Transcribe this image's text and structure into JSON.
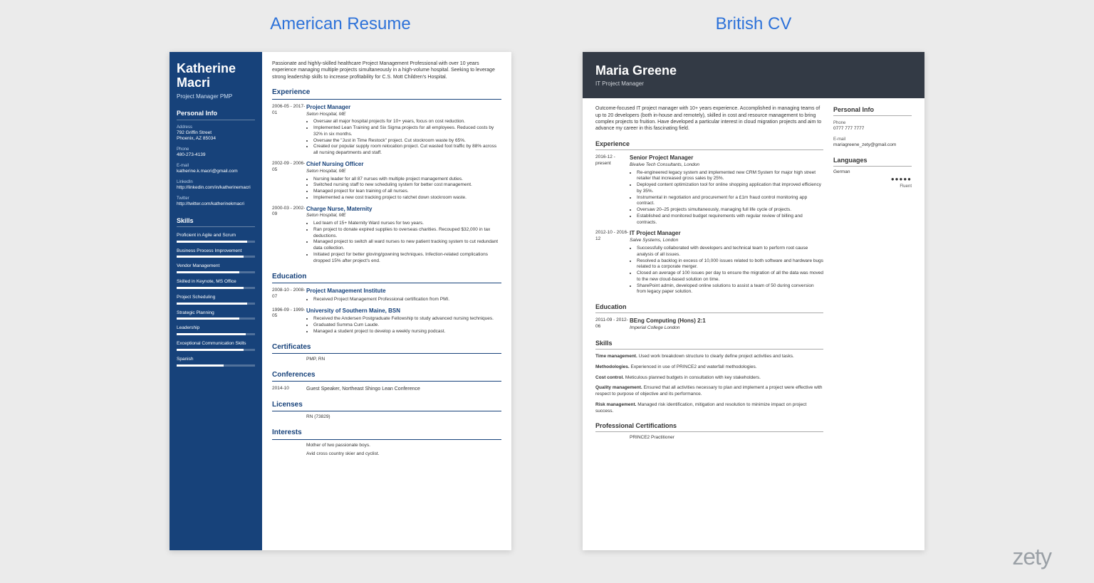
{
  "page": {
    "left_heading": "American Resume",
    "right_heading": "British CV",
    "brand": "zety"
  },
  "us": {
    "name_first": "Katherine",
    "name_last": "Macri",
    "title": "Project Manager PMP",
    "personal_info_h": "Personal Info",
    "address_label": "Address",
    "address1": "792 Griffin Street",
    "address2": "Phoenix, AZ 85034",
    "phone_label": "Phone",
    "phone": "480-273-4139",
    "email_label": "E-mail",
    "email": "katherine.k.macri@gmail.com",
    "linkedin_label": "LinkedIn",
    "linkedin": "http://linkedin.com/in/katherinemacri",
    "twitter_label": "Twitter",
    "twitter": "http://twitter.com/katherinekmacri",
    "skills_h": "Skills",
    "skills": [
      {
        "label": "Proficient in Agile and Scrum",
        "pct": 90
      },
      {
        "label": "Business Process Improvement",
        "pct": 85
      },
      {
        "label": "Vendor Management",
        "pct": 80
      },
      {
        "label": "Skilled in Keynote, MS Office",
        "pct": 85
      },
      {
        "label": "Project Scheduling",
        "pct": 90
      },
      {
        "label": "Strategic Planning",
        "pct": 80
      },
      {
        "label": "Leadership",
        "pct": 88
      },
      {
        "label": "Exceptional Communication Skills",
        "pct": 85
      }
    ],
    "lang_skill": {
      "label": "Spanish",
      "pct": 60
    },
    "summary": "Passionate and highly-skilled healthcare Project Management Professional with over 10 years experience managing multiple projects simultaneously in a high-volume hospital. Seeking to leverage strong leadership skills to increase profitability for C.S. Mott Children's Hospital.",
    "experience_h": "Experience",
    "exp": [
      {
        "dates": "2006-05 - 2017-01",
        "role": "Project Manager",
        "org": "Seton Hospital, ME",
        "bullets": [
          "Oversaw all major hospital projects for 10+ years, focus on cost reduction.",
          "Implemented Lean Training and Six Sigma projects for all employees. Reduced costs by 32% in six months.",
          "Oversaw the \"Just in Time Restock\" project. Cut stockroom waste by 65%.",
          "Created our popular supply room relocation project. Cut wasted foot traffic by 88% across all nursing departments and staff."
        ]
      },
      {
        "dates": "2002-09 - 2006-05",
        "role": "Chief Nursing Officer",
        "org": "Seton Hospital, ME",
        "bullets": [
          "Nursing leader for all 87 nurses with multiple project management duties.",
          "Switched nursing staff to new scheduling system for better cost management.",
          "Managed project for lean training of all nurses.",
          "Implemented a new cost tracking project to ratchet down stockroom waste."
        ]
      },
      {
        "dates": "2000-03 - 2002-09",
        "role": "Charge Nurse, Maternity",
        "org": "Seton Hospital, ME",
        "bullets": [
          "Led team of 15+ Maternity Ward nurses for two years.",
          "Ran project to donate expired supplies to overseas charities. Recouped $32,000 in tax deductions.",
          "Managed project to switch all ward nurses to new patient tracking system to cut redundant data collection.",
          "Initiated project for better gloving/gowning techniques. Infection-related complications dropped 15% after project's end."
        ]
      }
    ],
    "education_h": "Education",
    "edu": [
      {
        "dates": "2008-10 - 2008-07",
        "role": "Project Management Institute",
        "org": "",
        "bullets": [
          "Received Project Management Professional certification from PMI."
        ]
      },
      {
        "dates": "1996-09 - 1999-05",
        "role": "University of Southern Maine, BSN",
        "org": "",
        "bullets": [
          "Received the Andersen Postgraduate Fellowship to study advanced nursing techniques.",
          "Graduated Summa Cum Laude.",
          "Managed a student project to develop a weekly nursing podcast."
        ]
      }
    ],
    "certificates_h": "Certificates",
    "certificates": "PMP, RN",
    "conferences_h": "Conferences",
    "conf_date": "2014-10",
    "conf": "Guest Speaker, Northeast Shingo Lean Conference",
    "licenses_h": "Licenses",
    "licenses": "RN (73829)",
    "interests_h": "Interests",
    "interest1": "Mother of two passionate boys.",
    "interest2": "Avid cross country skier and cyclist."
  },
  "uk": {
    "name": "Maria Greene",
    "title": "IT Project Manager",
    "summary": "Outcome-focused IT project manager with 10+ years experience. Accomplished in managing teams of up to 20 developers (both in-house and remotely), skilled in cost and resource management to bring complex projects to fruition. Have developed a particular interest in cloud migration projects and aim to advance my career in this fascinating field.",
    "experience_h": "Experience",
    "exp": [
      {
        "dates": "2016-12 - present",
        "role": "Senior Project Manager",
        "org": "Bivalve Tech Consultants, London",
        "bullets": [
          "Re-engineered legacy system and implemented new CRM System for major high street retailer that increased gross sales by 25%.",
          "Deployed content optimization tool for online shopping application that improved efficiency by 35%.",
          "Instrumental in negotiation and procurement for a £1m fraud control monitoring app contract.",
          "Oversaw 20–25 projects simultaneously, managing full life cycle of projects.",
          "Established and monitored budget requirements with regular review of billing and contracts."
        ]
      },
      {
        "dates": "2012-10 - 2016-12",
        "role": "IT Project Manager",
        "org": "Salve Systems, London",
        "bullets": [
          "Successfully collaborated with developers and technical team to perform root cause analysis of all issues.",
          "Resolved a backlog in excess of 10,000 issues related to both software and hardware bugs related to a corporate merger.",
          "Closed an average of 100 issues per day to ensure the migration of all the data was moved to the new cloud-based solution on time.",
          "SharePoint admin, developed online solutions to assist a team of 50 during conversion from legacy paper solution."
        ]
      }
    ],
    "education_h": "Education",
    "edu_dates": "2011-09 - 2012-06",
    "edu_role": "BEng Computing (Hons) 2:1",
    "edu_org": "Imperial College London",
    "skills_h": "Skills",
    "skills": [
      {
        "name": "Time management.",
        "text": "Used work breakdown structure to clearly define project activities and tasks."
      },
      {
        "name": "Methodologies.",
        "text": "Experienced in use of PRINCE2 and waterfall methodologies."
      },
      {
        "name": "Cost control.",
        "text": "Meticulous planned budgets in consultation with key stakeholders."
      },
      {
        "name": "Quality management.",
        "text": "Ensured that all activities necessary to plan and implement a project were effective with respect to purpose of objective and its performance."
      },
      {
        "name": "Risk management.",
        "text": "Managed risk identification, mitigation and resolution to minimize impact on project success."
      }
    ],
    "certs_h": "Professional Certifications",
    "certs": "PRINCE2 Practitioner",
    "side": {
      "personal_h": "Personal Info",
      "phone_label": "Phone",
      "phone": "0777 777 7777",
      "email_label": "E-mail",
      "email": "mariagreene_zety@gmail.com",
      "languages_h": "Languages",
      "lang": "German",
      "dots": "●●●●●",
      "lang_level": "Fluent"
    }
  }
}
